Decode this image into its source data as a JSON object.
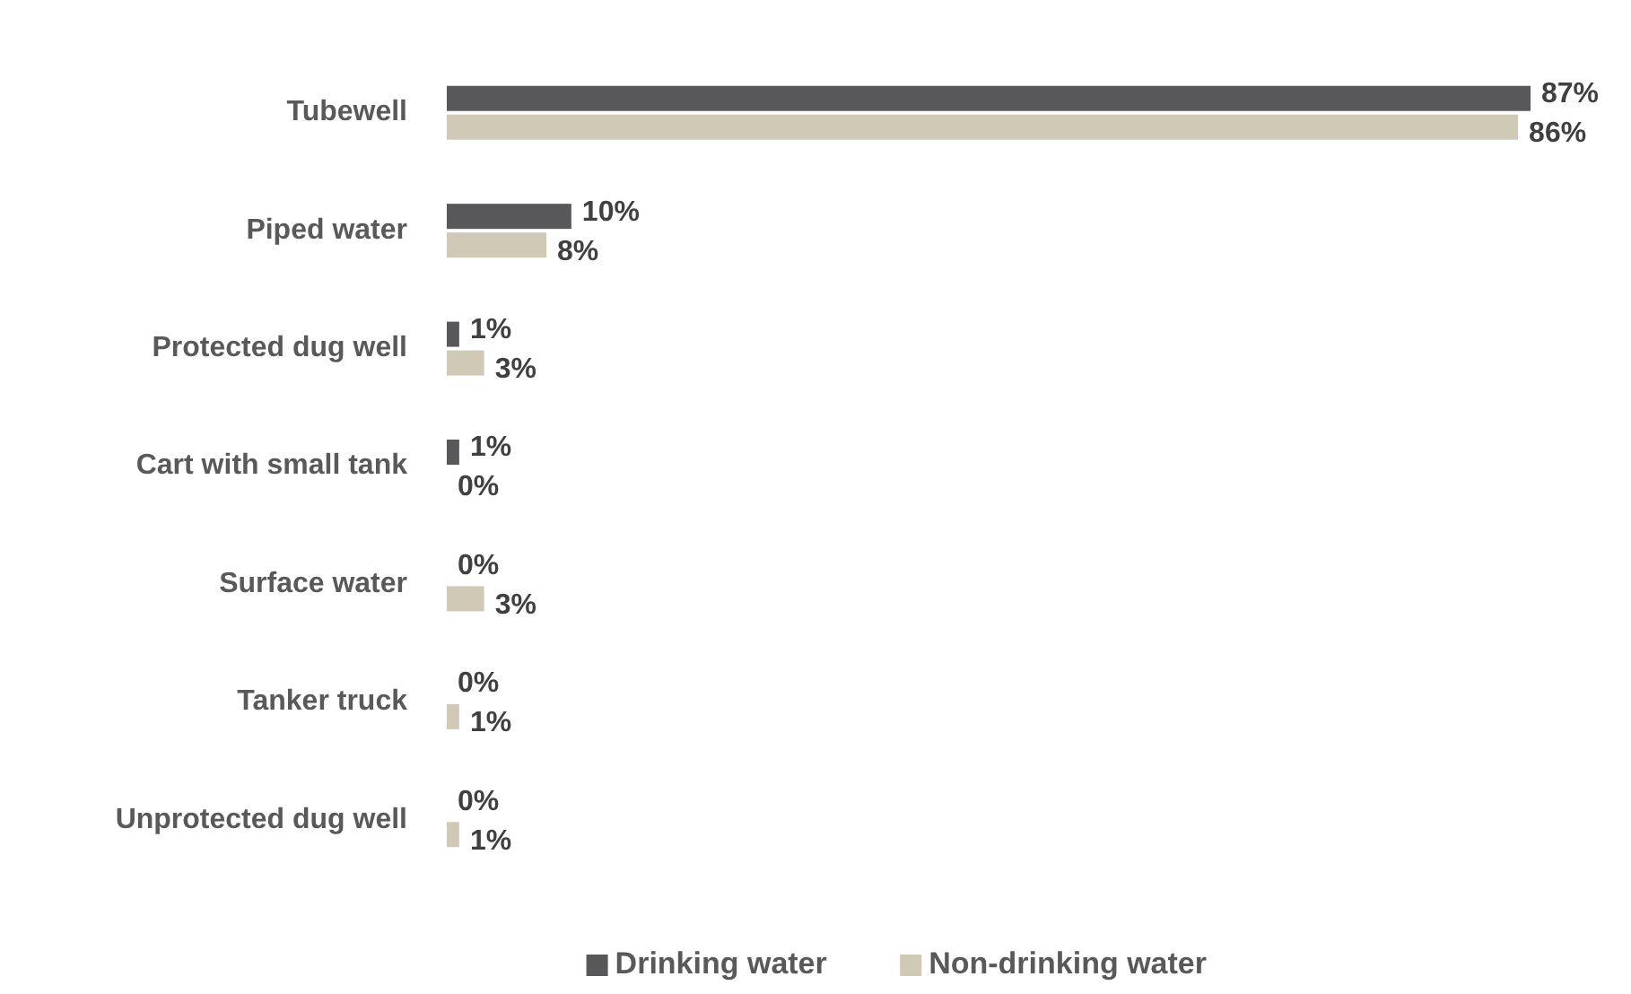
{
  "chart_data": {
    "type": "bar",
    "orientation": "horizontal",
    "legend": "bottom",
    "categories": [
      "Tubewell",
      "Piped water",
      "Protected dug well",
      "Cart with small tank",
      "Surface water",
      "Tanker truck",
      "Unprotected dug well"
    ],
    "series": [
      {
        "name": "Drinking water",
        "color": "#58585a",
        "values": [
          87,
          10,
          1,
          1,
          0,
          0,
          0
        ],
        "value_labels": [
          "87%",
          "10%",
          "1%",
          "1%",
          "0%",
          "0%",
          "0%"
        ]
      },
      {
        "name": "Non-drinking water",
        "color": "#d0c9b5",
        "values": [
          86,
          8,
          3,
          0,
          3,
          1,
          1
        ],
        "value_labels": [
          "86%",
          "8%",
          "3%",
          "0%",
          "3%",
          "1%",
          "1%"
        ]
      }
    ]
  }
}
